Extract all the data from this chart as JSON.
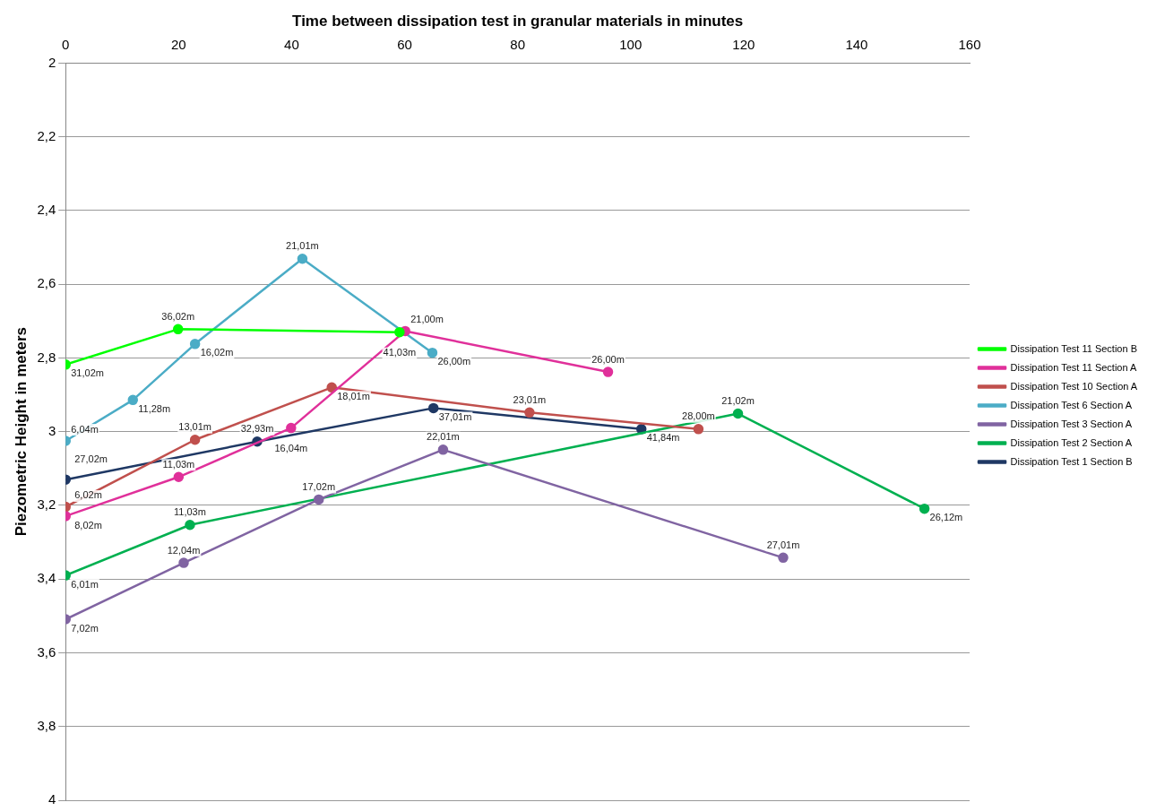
{
  "chart_data": {
    "type": "line",
    "xlabel": "Time between dissipation test in granular materials in minutes",
    "ylabel": "Piezometric Height in meters",
    "xlim": [
      0,
      160
    ],
    "xticks": [
      0,
      20,
      40,
      60,
      80,
      100,
      120,
      140,
      160
    ],
    "ylim": [
      4,
      2
    ],
    "yticks": [
      2,
      {
        "value": 2.2,
        "label": "2,2"
      },
      {
        "value": 2.4,
        "label": "2,4"
      },
      {
        "value": 2.6,
        "label": "2,6"
      },
      {
        "value": 2.8,
        "label": "2,8"
      },
      3,
      {
        "value": 3.2,
        "label": "3,2"
      },
      {
        "value": 3.4,
        "label": "3,4"
      },
      {
        "value": 3.6,
        "label": "3,6"
      },
      {
        "value": 3.8,
        "label": "3,8"
      },
      4
    ],
    "grid": "y",
    "legend": "right",
    "marker": "circle",
    "line_style": "solid",
    "series": [
      {
        "name": "Dissipation Test 1 Section B",
        "color": "#1f3864",
        "x": [
          0,
          33.9,
          65.1,
          101.9
        ],
        "values": [
          3.13,
          3.027,
          2.936,
          2.993
        ]
      },
      {
        "name": "Dissipation Test 2 Section A",
        "color": "#00b050",
        "x": [
          0,
          22,
          119,
          152
        ],
        "values": [
          3.39,
          3.253,
          2.951,
          3.209
        ]
      },
      {
        "name": "Dissipation Test 3 Section A",
        "color": "#8064a2",
        "x": [
          0,
          20.9,
          44.8,
          66.8,
          127
        ],
        "values": [
          3.509,
          3.356,
          3.184,
          3.049,
          3.342
        ]
      },
      {
        "name": "Dissipation Test 6 Section A",
        "color": "#4bacc6",
        "x": [
          0,
          11.9,
          22.9,
          41.9,
          64.9
        ],
        "values": [
          3.025,
          2.914,
          2.762,
          2.531,
          2.786
        ]
      },
      {
        "name": "Dissipation Test 10 Section A",
        "color": "#c0504d",
        "x": [
          0,
          22.9,
          47.1,
          82.1,
          112
        ],
        "values": [
          3.204,
          3.022,
          2.88,
          2.948,
          2.993
        ]
      },
      {
        "name": "Dissipation Test 11 Section A",
        "color": "#e0309a",
        "x": [
          0,
          20,
          39.9,
          60.1,
          96
        ],
        "values": [
          3.229,
          3.123,
          2.99,
          2.727,
          2.838
        ]
      },
      {
        "name": "Dissipation Test 11 Section B",
        "color": "#00ff00",
        "x": [
          0,
          19.9,
          59.1
        ],
        "values": [
          2.818,
          2.722,
          2.73
        ]
      }
    ],
    "annotations": [
      {
        "text": "27,02m",
        "x": 0,
        "y": 3.13
      },
      {
        "text": "32,93m",
        "x": 33.9,
        "y": 3.027
      },
      {
        "text": "37,01m",
        "x": 65.1,
        "y": 2.936
      },
      {
        "text": "41,84m",
        "x": 101.9,
        "y": 2.993
      },
      {
        "text": "6,01m",
        "x": 0,
        "y": 3.39
      },
      {
        "text": "11,03m",
        "x": 22,
        "y": 3.253
      },
      {
        "text": "21,02m",
        "x": 119,
        "y": 2.951
      },
      {
        "text": "26,12m",
        "x": 152,
        "y": 3.209
      },
      {
        "text": "7,02m",
        "x": 0,
        "y": 3.509
      },
      {
        "text": "12,04m",
        "x": 20.9,
        "y": 3.356
      },
      {
        "text": "17,02m",
        "x": 44.8,
        "y": 3.184
      },
      {
        "text": "22,01m",
        "x": 66.8,
        "y": 3.049
      },
      {
        "text": "27,01m",
        "x": 127,
        "y": 3.342
      },
      {
        "text": "6,04m",
        "x": 0,
        "y": 3.025
      },
      {
        "text": "11,28m",
        "x": 11.9,
        "y": 2.914
      },
      {
        "text": "16,02m",
        "x": 22.9,
        "y": 2.762
      },
      {
        "text": "21,01m",
        "x": 41.9,
        "y": 2.531
      },
      {
        "text": "26,00m",
        "x": 64.9,
        "y": 2.786
      },
      {
        "text": "8,02m",
        "x": 0,
        "y": 3.204
      },
      {
        "text": "13,01m",
        "x": 22.9,
        "y": 3.022
      },
      {
        "text": "18,01m",
        "x": 47.1,
        "y": 2.88
      },
      {
        "text": "23,01m",
        "x": 82.1,
        "y": 2.948
      },
      {
        "text": "28,00m",
        "x": 112,
        "y": 2.993
      },
      {
        "text": "6,02m",
        "x": 0,
        "y": 3.229
      },
      {
        "text": "11,03m",
        "x": 20,
        "y": 3.123
      },
      {
        "text": "16,04m",
        "x": 39.9,
        "y": 2.99
      },
      {
        "text": "21,00m",
        "x": 60.1,
        "y": 2.727
      },
      {
        "text": "26,00m",
        "x": 96,
        "y": 2.838
      },
      {
        "text": "31,02m",
        "x": 0,
        "y": 2.818
      },
      {
        "text": "36,02m",
        "x": 19.9,
        "y": 2.722
      },
      {
        "text": "41,03m",
        "x": 59.1,
        "y": 2.73
      }
    ]
  }
}
